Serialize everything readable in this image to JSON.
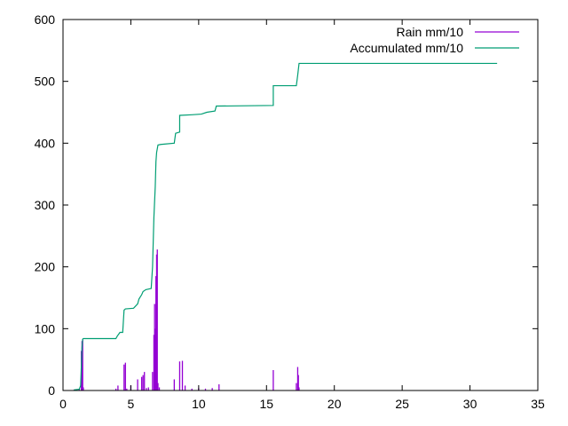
{
  "chart_data": {
    "type": "line",
    "title": "",
    "xlabel": "",
    "ylabel": "",
    "xlim": [
      0,
      35
    ],
    "ylim": [
      0,
      600
    ],
    "xticks": [
      0,
      5,
      10,
      15,
      20,
      25,
      30,
      35
    ],
    "yticks": [
      0,
      100,
      200,
      300,
      400,
      500,
      600
    ],
    "grid": false,
    "legend_position": "top-right",
    "series": [
      {
        "name": "Rain mm/10",
        "style": "impulses",
        "color": "#9400d3",
        "points": [
          [
            0.8,
            1
          ],
          [
            1.0,
            1
          ],
          [
            1.2,
            3
          ],
          [
            1.35,
            64
          ],
          [
            1.4,
            80
          ],
          [
            1.45,
            83
          ],
          [
            1.5,
            5
          ],
          [
            3.9,
            3
          ],
          [
            4.05,
            8
          ],
          [
            4.5,
            42
          ],
          [
            4.6,
            45
          ],
          [
            4.7,
            3
          ],
          [
            5.0,
            8
          ],
          [
            5.5,
            18
          ],
          [
            5.8,
            22
          ],
          [
            5.9,
            25
          ],
          [
            6.0,
            30
          ],
          [
            6.15,
            4
          ],
          [
            6.3,
            5
          ],
          [
            6.6,
            30
          ],
          [
            6.7,
            90
          ],
          [
            6.75,
            140
          ],
          [
            6.8,
            100
          ],
          [
            6.85,
            185
          ],
          [
            6.9,
            220
          ],
          [
            6.95,
            228
          ],
          [
            7.0,
            12
          ],
          [
            7.1,
            5
          ],
          [
            8.2,
            18
          ],
          [
            8.6,
            47
          ],
          [
            8.8,
            48
          ],
          [
            9.0,
            8
          ],
          [
            9.5,
            3
          ],
          [
            10.0,
            4
          ],
          [
            10.5,
            3
          ],
          [
            11.0,
            4
          ],
          [
            11.5,
            10
          ],
          [
            15.5,
            33
          ],
          [
            17.2,
            12
          ],
          [
            17.3,
            38
          ],
          [
            17.35,
            25
          ],
          [
            17.4,
            5
          ]
        ]
      },
      {
        "name": "Accumulated mm/10",
        "style": "lines",
        "color": "#009e73",
        "points": [
          [
            0.8,
            1
          ],
          [
            1.2,
            2
          ],
          [
            1.3,
            8
          ],
          [
            1.4,
            70
          ],
          [
            1.45,
            83
          ],
          [
            1.5,
            84
          ],
          [
            3.9,
            84
          ],
          [
            4.0,
            88
          ],
          [
            4.2,
            94
          ],
          [
            4.4,
            94
          ],
          [
            4.5,
            130
          ],
          [
            4.6,
            132
          ],
          [
            5.2,
            133
          ],
          [
            5.5,
            140
          ],
          [
            5.6,
            148
          ],
          [
            5.8,
            155
          ],
          [
            5.9,
            160
          ],
          [
            6.1,
            163
          ],
          [
            6.5,
            165
          ],
          [
            6.6,
            200
          ],
          [
            6.7,
            280
          ],
          [
            6.8,
            330
          ],
          [
            6.85,
            370
          ],
          [
            6.9,
            385
          ],
          [
            7.0,
            397
          ],
          [
            7.2,
            398
          ],
          [
            8.2,
            400
          ],
          [
            8.3,
            416
          ],
          [
            8.6,
            418
          ],
          [
            8.6,
            445
          ],
          [
            9.5,
            446
          ],
          [
            10.2,
            447
          ],
          [
            10.6,
            450
          ],
          [
            11.2,
            452
          ],
          [
            11.3,
            460
          ],
          [
            15.5,
            461
          ],
          [
            15.5,
            493
          ],
          [
            17.2,
            493
          ],
          [
            17.3,
            510
          ],
          [
            17.4,
            529
          ],
          [
            32.0,
            529
          ]
        ]
      }
    ]
  }
}
